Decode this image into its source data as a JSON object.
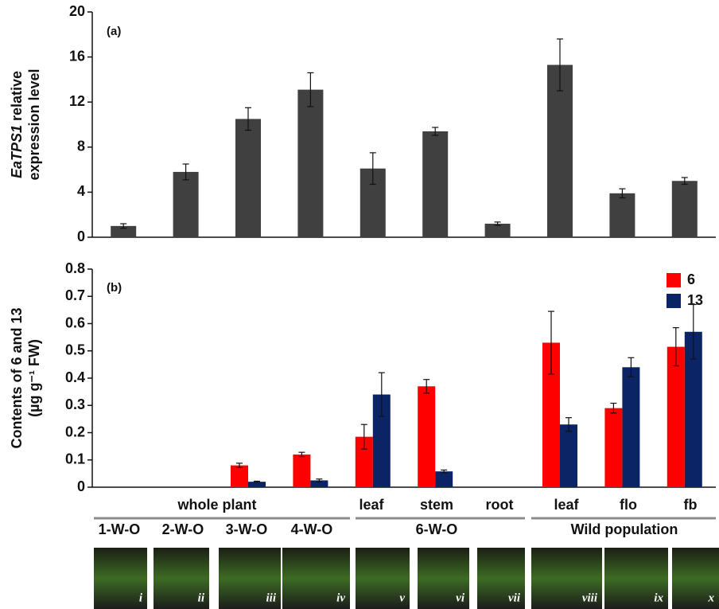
{
  "chart_data": [
    {
      "type": "bar",
      "panel": "(a)",
      "ylabel": [
        "EaTPS1",
        "relative",
        "expression level"
      ],
      "values": [
        1.0,
        5.8,
        10.5,
        13.1,
        6.1,
        9.4,
        1.2,
        15.3,
        3.9,
        5.0
      ],
      "errors": [
        0.2,
        0.7,
        1.0,
        1.5,
        1.4,
        0.35,
        0.15,
        2.3,
        0.4,
        0.3
      ],
      "color": "#404040",
      "ylim": [
        0,
        20
      ],
      "yticks": [
        0,
        4,
        8,
        12,
        16,
        20
      ]
    },
    {
      "type": "grouped-bar",
      "panel": "(b)",
      "ylabel": [
        "Contents of 6 and 13",
        "(µg g⁻¹ FW)"
      ],
      "series": [
        {
          "name": "6",
          "color": "#ff0000",
          "values": [
            0,
            0,
            0.08,
            0.12,
            0.185,
            0.37,
            0,
            0.53,
            0.29,
            0.515
          ],
          "errors": [
            0,
            0,
            0.008,
            0.008,
            0.045,
            0.025,
            0,
            0.115,
            0.018,
            0.07
          ]
        },
        {
          "name": "13",
          "color": "#0a2466",
          "values": [
            0,
            0,
            0.02,
            0.025,
            0.34,
            0.058,
            0,
            0.23,
            0.44,
            0.57
          ],
          "errors": [
            0,
            0,
            0.002,
            0.005,
            0.08,
            0.005,
            0,
            0.025,
            0.035,
            0.1
          ]
        }
      ],
      "ylim": [
        0,
        0.8
      ],
      "yticks": [
        0,
        0.1,
        0.2,
        0.3,
        0.4,
        0.5,
        0.6,
        0.7,
        0.8
      ],
      "legend": "upper right"
    }
  ],
  "x_labels": {
    "row1": [
      "whole plant",
      "leaf",
      "stem",
      "root",
      "leaf",
      "flo",
      "fb"
    ],
    "row2": [
      "1-W-O",
      "2-W-O",
      "3-W-O",
      "4-W-O",
      "6-W-O",
      "Wild population"
    ],
    "photos": [
      "i",
      "ii",
      "iii",
      "iv",
      "v",
      "vi",
      "vii",
      "viii",
      "ix",
      "x"
    ]
  }
}
